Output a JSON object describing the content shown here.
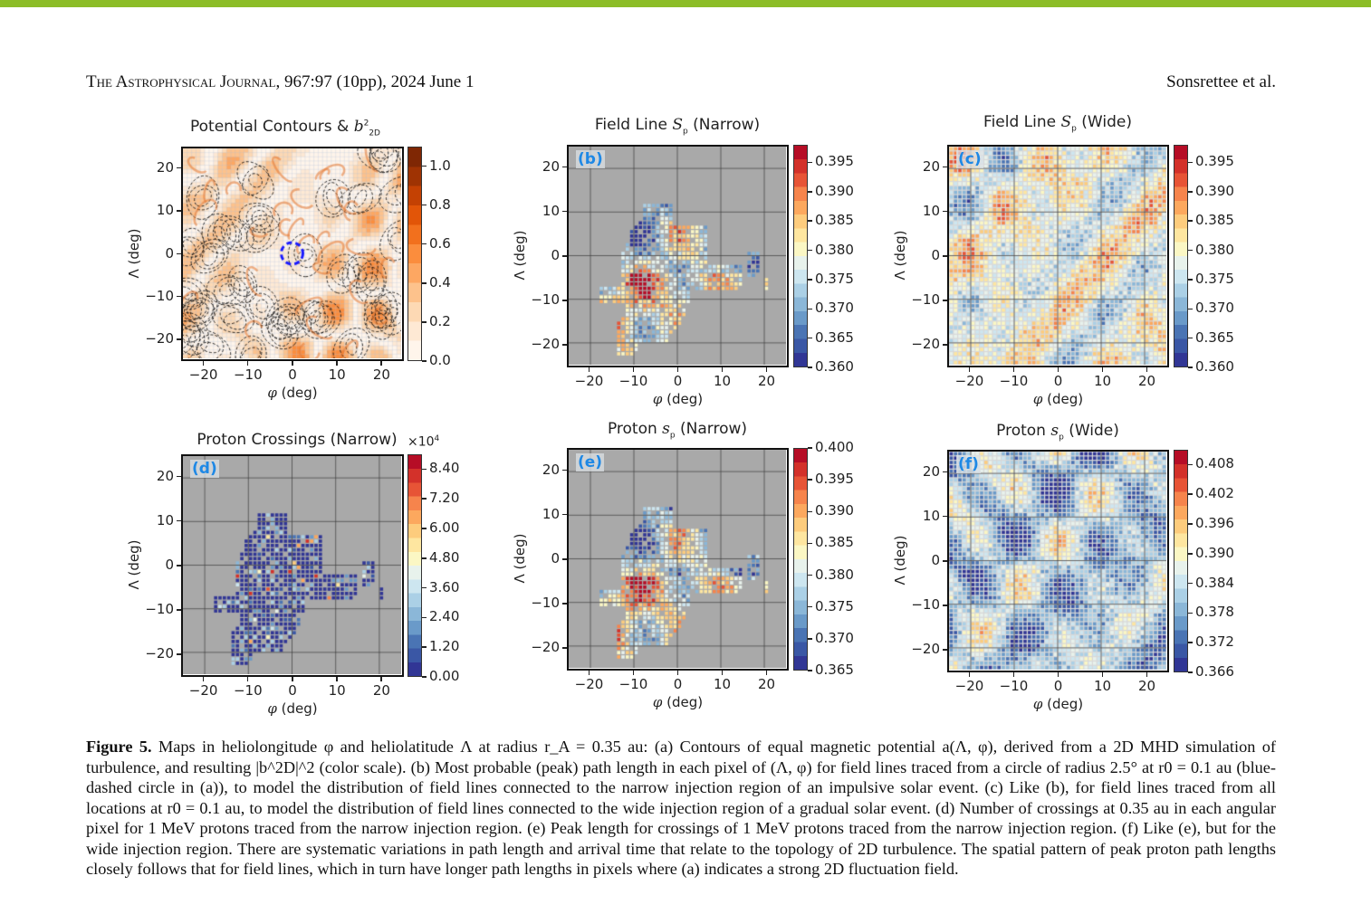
{
  "header": {
    "journal": "The Astrophysical Journal",
    "citation": ", 967:97 (10pp), 2024 June 1",
    "authors": "Sonsrettee et al."
  },
  "accent_color": "#8cbd27",
  "chart_data": [
    {
      "id": "a",
      "type": "heatmap",
      "title": "Potential Contours & b²₂D",
      "title_main": "Potential Contours & ",
      "title_var": "b",
      "title_sup": "2",
      "title_sub": "2D",
      "panel_label": "",
      "xlabel": "φ (deg)",
      "ylabel": "Λ (deg)",
      "xlim": [
        -25,
        25
      ],
      "ylim": [
        -25,
        25
      ],
      "xticks": [
        "−20",
        "−10",
        "0",
        "10",
        "20"
      ],
      "yticks": [
        "20",
        "10",
        "0",
        "−10",
        "−20"
      ],
      "colormap": "Oranges",
      "colorbar_ticks": [
        "1.0",
        "0.8",
        "0.6",
        "0.4",
        "0.2",
        "0.0"
      ],
      "colorbar_range": [
        0.0,
        1.1
      ],
      "overlay": "black dashed contours of magnetic potential; blue dashed circle of radius 2.5 deg at (0,0)"
    },
    {
      "id": "b",
      "type": "heatmap",
      "title_main": "Field Line ",
      "title_var": "S",
      "title_sub": "p",
      "title_tail": " (Narrow)",
      "panel_label": "(b)",
      "xlabel": "φ (deg)",
      "ylabel": "Λ (deg)",
      "xlim": [
        -25,
        25
      ],
      "ylim": [
        -25,
        25
      ],
      "xticks": [
        "−20",
        "−10",
        "0",
        "10",
        "20"
      ],
      "yticks": [
        "20",
        "10",
        "0",
        "−10",
        "−20"
      ],
      "colormap": "RdYlBu_r",
      "colorbar_ticks": [
        "0.395",
        "0.390",
        "0.385",
        "0.380",
        "0.375",
        "0.370",
        "0.365",
        "0.360"
      ],
      "colorbar_range": [
        0.36,
        0.398
      ],
      "coverage": "narrow"
    },
    {
      "id": "c",
      "type": "heatmap",
      "title_main": "Field Line ",
      "title_var": "S",
      "title_sub": "p",
      "title_tail": " (Wide)",
      "panel_label": "(c)",
      "xlabel": "φ (deg)",
      "ylabel": "Λ (deg)",
      "xlim": [
        -25,
        25
      ],
      "ylim": [
        -25,
        25
      ],
      "xticks": [
        "−20",
        "−10",
        "0",
        "10",
        "20"
      ],
      "yticks": [
        "20",
        "10",
        "0",
        "−10",
        "−20"
      ],
      "colormap": "RdYlBu_r",
      "colorbar_ticks": [
        "0.395",
        "0.390",
        "0.385",
        "0.380",
        "0.375",
        "0.370",
        "0.365",
        "0.360"
      ],
      "colorbar_range": [
        0.36,
        0.398
      ],
      "coverage": "wide"
    },
    {
      "id": "d",
      "type": "heatmap",
      "title_main": "Proton Crossings (Narrow)",
      "panel_label": "(d)",
      "multiplier": "×10",
      "multiplier_exp": "4",
      "xlabel": "φ (deg)",
      "ylabel": "Λ (deg)",
      "xlim": [
        -25,
        25
      ],
      "ylim": [
        -25,
        25
      ],
      "xticks": [
        "−20",
        "−10",
        "0",
        "10",
        "20"
      ],
      "yticks": [
        "20",
        "10",
        "0",
        "−10",
        "−20"
      ],
      "colormap": "RdYlBu_r",
      "colorbar_ticks": [
        "8.40",
        "7.20",
        "6.00",
        "4.80",
        "3.60",
        "2.40",
        "1.20",
        "0.00"
      ],
      "colorbar_range": [
        0.0,
        9.0
      ],
      "coverage": "narrow"
    },
    {
      "id": "e",
      "type": "heatmap",
      "title_main": "Proton ",
      "title_var": "s",
      "title_sub": "p",
      "title_tail": " (Narrow)",
      "panel_label": "(e)",
      "xlabel": "φ (deg)",
      "ylabel": "Λ (deg)",
      "xlim": [
        -25,
        25
      ],
      "ylim": [
        -25,
        25
      ],
      "xticks": [
        "−20",
        "−10",
        "0",
        "10",
        "20"
      ],
      "yticks": [
        "20",
        "10",
        "0",
        "−10",
        "−20"
      ],
      "colormap": "RdYlBu_r",
      "colorbar_ticks": [
        "0.400",
        "0.395",
        "0.390",
        "0.385",
        "0.380",
        "0.375",
        "0.370",
        "0.365"
      ],
      "colorbar_range": [
        0.365,
        0.4
      ],
      "coverage": "narrow"
    },
    {
      "id": "f",
      "type": "heatmap",
      "title_main": "Proton ",
      "title_var": "s",
      "title_sub": "p",
      "title_tail": " (Wide)",
      "panel_label": "(f)",
      "xlabel": "φ (deg)",
      "ylabel": "Λ (deg)",
      "xlim": [
        -25,
        25
      ],
      "ylim": [
        -25,
        25
      ],
      "xticks": [
        "−20",
        "−10",
        "0",
        "10",
        "20"
      ],
      "yticks": [
        "20",
        "10",
        "0",
        "−10",
        "−20"
      ],
      "colormap": "RdYlBu_r",
      "colorbar_ticks": [
        "0.408",
        "0.402",
        "0.396",
        "0.390",
        "0.384",
        "0.378",
        "0.372",
        "0.366"
      ],
      "colorbar_range": [
        0.366,
        0.411
      ],
      "coverage": "wide"
    }
  ],
  "caption": {
    "label": "Figure 5.",
    "text": " Maps in heliolongitude φ and heliolatitude Λ at radius r_A = 0.35 au: (a) Contours of equal magnetic potential a(Λ, φ), derived from a 2D MHD simulation of turbulence, and resulting |b^2D|^2 (color scale). (b) Most probable (peak) path length in each pixel of (Λ, φ) for field lines traced from a circle of radius 2.5° at r0 = 0.1 au (blue-dashed circle in (a)), to model the distribution of field lines connected to the narrow injection region of an impulsive solar event. (c) Like (b), for field lines traced from all locations at r0 = 0.1 au, to model the distribution of field lines connected to the wide injection region of a gradual solar event. (d) Number of crossings at 0.35 au in each angular pixel for 1 MeV protons traced from the narrow injection region. (e) Peak length for crossings of 1 MeV protons traced from the narrow injection region. (f) Like (e), but for the wide injection region. There are systematic variations in path length and arrival time that relate to the topology of 2D turbulence. The spatial pattern of peak proton path lengths closely follows that for field lines, which in turn have longer path lengths in pixels where (a) indicates a strong 2D fluctuation field."
  }
}
